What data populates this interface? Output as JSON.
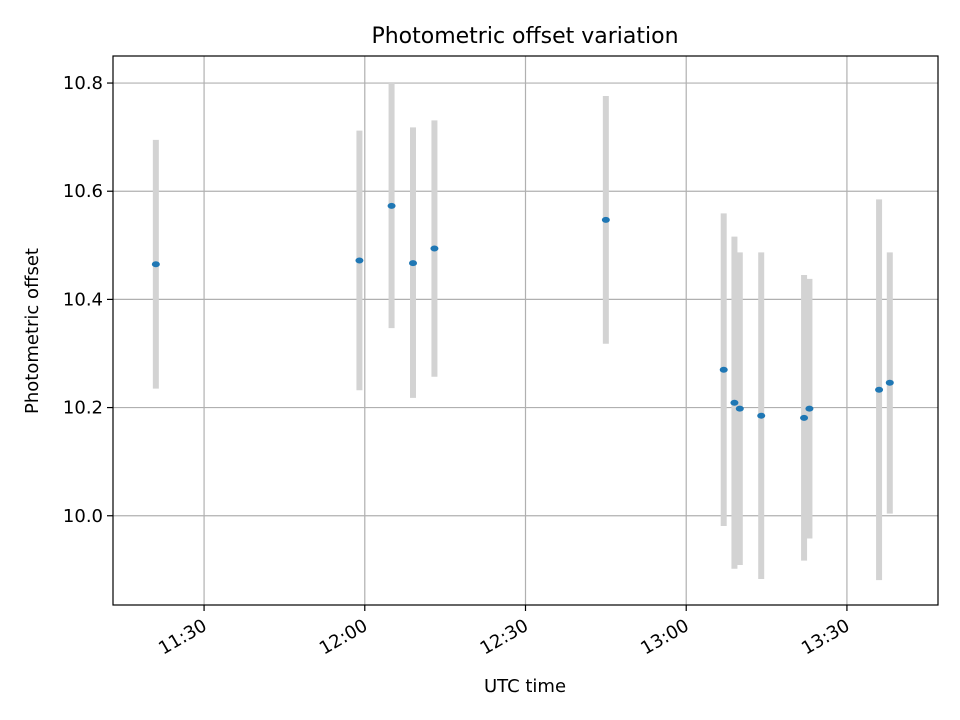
{
  "chart_data": {
    "type": "scatter",
    "title": "Photometric offset variation",
    "xlabel": "UTC time",
    "ylabel": "Photometric offset",
    "x_ticks": [
      "11:30",
      "12:00",
      "12:30",
      "13:00",
      "13:30"
    ],
    "y_ticks": [
      "10.0",
      "10.2",
      "10.4",
      "10.6",
      "10.8"
    ],
    "xlim": [
      "11:13",
      "13:47"
    ],
    "ylim": [
      9.835,
      10.85
    ],
    "grid": true,
    "colors": {
      "point": "#1f77b4",
      "errorbar": "#d3d3d3",
      "grid": "#b0b0b0"
    },
    "points": [
      {
        "x": "11:21",
        "y": 10.465,
        "low": 10.235,
        "high": 10.695
      },
      {
        "x": "11:59",
        "y": 10.472,
        "low": 10.232,
        "high": 10.712
      },
      {
        "x": "12:05",
        "y": 10.573,
        "low": 10.347,
        "high": 10.8
      },
      {
        "x": "12:09",
        "y": 10.467,
        "low": 10.218,
        "high": 10.718
      },
      {
        "x": "12:13",
        "y": 10.494,
        "low": 10.257,
        "high": 10.731
      },
      {
        "x": "12:45",
        "y": 10.547,
        "low": 10.318,
        "high": 10.776
      },
      {
        "x": "13:07",
        "y": 10.27,
        "low": 9.981,
        "high": 10.559
      },
      {
        "x": "13:09",
        "y": 10.209,
        "low": 9.902,
        "high": 10.516
      },
      {
        "x": "13:10",
        "y": 10.198,
        "low": 9.909,
        "high": 10.487
      },
      {
        "x": "13:14",
        "y": 10.185,
        "low": 9.883,
        "high": 10.487
      },
      {
        "x": "13:22",
        "y": 10.181,
        "low": 9.917,
        "high": 10.445
      },
      {
        "x": "13:23",
        "y": 10.198,
        "low": 9.958,
        "high": 10.438
      },
      {
        "x": "13:36",
        "y": 10.233,
        "low": 9.881,
        "high": 10.585
      },
      {
        "x": "13:38",
        "y": 10.246,
        "low": 10.004,
        "high": 10.487
      }
    ]
  }
}
